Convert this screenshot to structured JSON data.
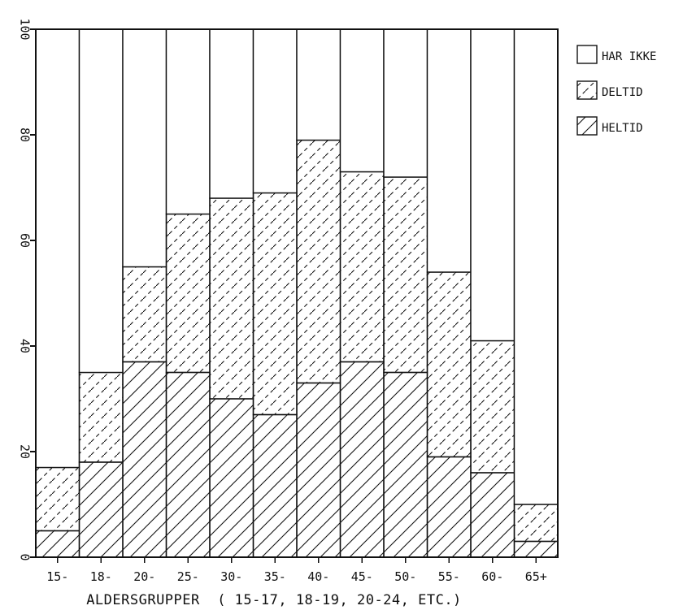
{
  "chart_data": {
    "type": "bar",
    "stacked": true,
    "categories": [
      "15-",
      "18-",
      "20-",
      "25-",
      "30-",
      "35-",
      "40-",
      "45-",
      "50-",
      "55-",
      "60-",
      "65+"
    ],
    "series": [
      {
        "name": "HELTID",
        "pattern": "single-hatch",
        "values": [
          5,
          18,
          37,
          35,
          30,
          27,
          33,
          37,
          35,
          19,
          16,
          3
        ]
      },
      {
        "name": "DELTID",
        "pattern": "dashed-hatch",
        "values": [
          12,
          17,
          18,
          30,
          38,
          42,
          46,
          36,
          37,
          35,
          25,
          7
        ]
      },
      {
        "name": "HAR IKKE",
        "pattern": "blank",
        "values": [
          83,
          65,
          45,
          35,
          32,
          31,
          21,
          27,
          28,
          46,
          59,
          90
        ]
      }
    ],
    "ylim": [
      0,
      100
    ],
    "yticks": [
      0,
      20,
      40,
      60,
      80,
      100
    ],
    "ytick_labels": [
      "0",
      "20",
      "40",
      "60",
      "80",
      "100"
    ],
    "xlabel": "ALDERSGRUPPER  ( 15-17, 18-19, 20-24, ETC.)",
    "ylabel": "",
    "title": "",
    "legend": {
      "placement": "top-right outside",
      "items": [
        "HAR IKKE",
        "DELTID",
        "HELTID"
      ]
    },
    "grid": false,
    "colors": {
      "ink": "#111111",
      "background": "#ffffff"
    }
  }
}
